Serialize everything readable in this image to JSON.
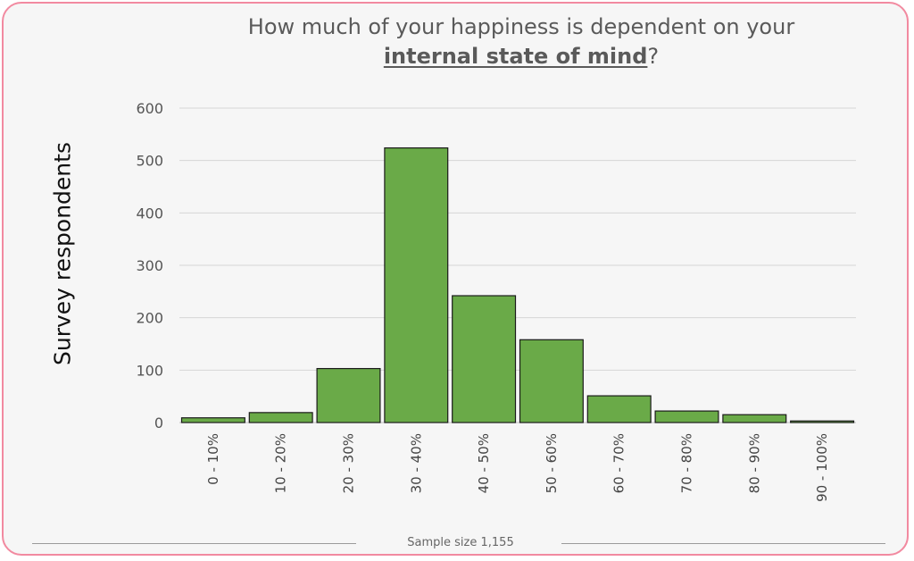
{
  "header": {
    "title_part1": "How much of your happiness is dependent on your",
    "title_emphasis": "internal state of mind",
    "title_end": "?"
  },
  "footer": {
    "sample_size": "Sample size 1,155"
  },
  "colors": {
    "bar_fill": "#6aaa48",
    "bar_stroke": "#1a1a1a",
    "gridline": "#d6d6d6",
    "frame_border": "#f28aa0",
    "background": "#f6f6f6"
  },
  "chart_data": {
    "type": "bar",
    "title": "How much of your happiness is dependent on your internal state of mind?",
    "xlabel": "",
    "ylabel": "Survey respondents",
    "categories": [
      "0 - 10%",
      "10 - 20%",
      "20 - 30%",
      "30 - 40%",
      "40 - 50%",
      "50 - 60%",
      "60 - 70%",
      "70 - 80%",
      "80 - 90%",
      "90 - 100%"
    ],
    "values": [
      9,
      19,
      103,
      524,
      242,
      158,
      51,
      22,
      15,
      3
    ],
    "ylim": [
      0,
      600
    ],
    "yticks": [
      0,
      100,
      200,
      300,
      400,
      500,
      600
    ],
    "grid": true
  }
}
